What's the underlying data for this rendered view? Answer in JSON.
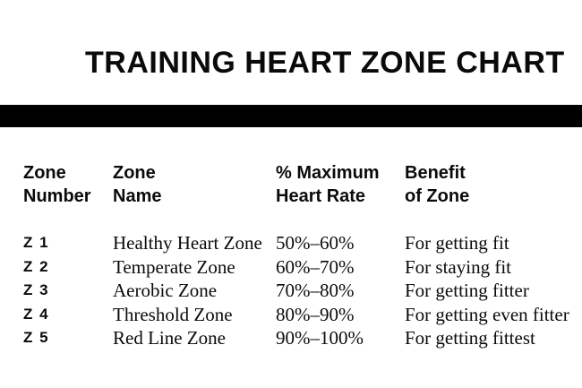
{
  "page": {
    "title": "TRAINING HEART ZONE CHART"
  },
  "colors": {
    "background": "#ffffff",
    "text": "#0b0b0b",
    "divider_bar": "#000000"
  },
  "table": {
    "headers": {
      "zone_number": "Zone\nNumber",
      "zone_name": "Zone\nName",
      "max_heart_rate": "% Maximum\nHeart Rate",
      "benefit": "Benefit\nof Zone"
    },
    "rows": [
      {
        "zone_number": "Z 1",
        "zone_name": "Healthy Heart Zone",
        "heart_rate": "50%–60%",
        "benefit": "For getting fit"
      },
      {
        "zone_number": "Z 2",
        "zone_name": "Temperate Zone",
        "heart_rate": "60%–70%",
        "benefit": "For staying fit"
      },
      {
        "zone_number": "Z 3",
        "zone_name": "Aerobic Zone",
        "heart_rate": "70%–80%",
        "benefit": "For getting fitter"
      },
      {
        "zone_number": "Z 4",
        "zone_name": "Threshold Zone",
        "heart_rate": "80%–90%",
        "benefit": "For getting even fitter"
      },
      {
        "zone_number": "Z 5",
        "zone_name": "Red Line Zone",
        "heart_rate": "90%–100%",
        "benefit": "For getting fittest"
      }
    ]
  },
  "chart_data": {
    "type": "table",
    "title": "TRAINING HEART ZONE CHART",
    "columns": [
      "Zone Number",
      "Zone Name",
      "% Maximum Heart Rate",
      "Benefit of Zone"
    ],
    "rows": [
      [
        "Z 1",
        "Healthy Heart Zone",
        "50%–60%",
        "For getting fit"
      ],
      [
        "Z 2",
        "Temperate Zone",
        "60%–70%",
        "For staying fit"
      ],
      [
        "Z 3",
        "Aerobic Zone",
        "70%–80%",
        "For getting fitter"
      ],
      [
        "Z 4",
        "Threshold Zone",
        "80%–90%",
        "For getting even fitter"
      ],
      [
        "Z 5",
        "Red Line Zone",
        "90%–100%",
        "For getting fittest"
      ]
    ]
  }
}
